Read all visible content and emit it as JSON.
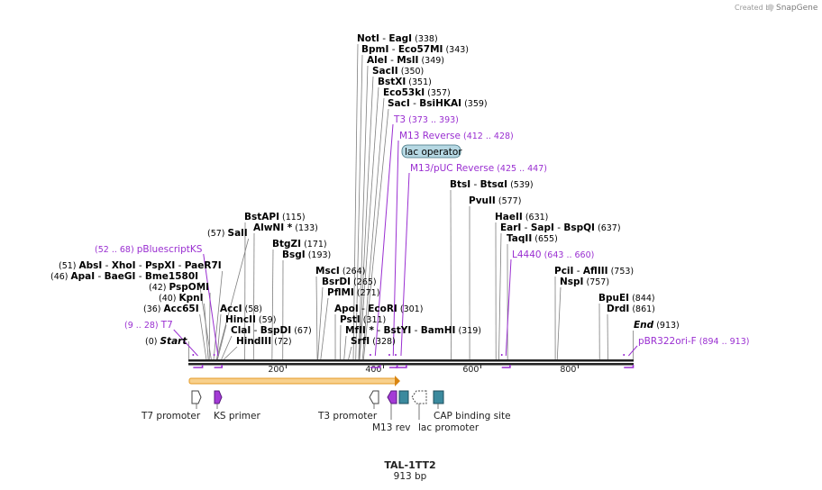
{
  "credit": {
    "prefix": "Created by",
    "brand": "SnapGene"
  },
  "title": "TAL-1TT2",
  "subtitle": "913 bp",
  "axis": {
    "min": 0,
    "max": 913,
    "ticks": [
      200,
      400,
      600,
      800
    ]
  },
  "sites": [
    {
      "label": "NotI",
      "pair": "EagI",
      "pos": "(338)",
      "at": 338
    },
    {
      "label": "BpmI",
      "pair": "Eco57MI",
      "pos": "(343)",
      "at": 343
    },
    {
      "label": "AleI",
      "pair": "MslI",
      "pos": "(349)",
      "at": 349
    },
    {
      "label": "SacII",
      "pos": "(350)",
      "at": 350
    },
    {
      "label": "BstXI",
      "pos": "(351)",
      "at": 351
    },
    {
      "label": "Eco53kI",
      "pos": "(357)",
      "at": 357
    },
    {
      "label": "SacI",
      "pair": "BsiHKAI",
      "pos": "(359)",
      "at": 359
    },
    {
      "label": "BtsI",
      "pair": "BtsαI",
      "pos": "(539)",
      "at": 539
    },
    {
      "label": "PvuII",
      "pos": "(577)",
      "at": 577
    },
    {
      "label": "HaeII",
      "pos": "(631)",
      "at": 631
    },
    {
      "label": "EarI",
      "pair": "SapI",
      "pair2": "BspQI",
      "pos": "(637)",
      "at": 637
    },
    {
      "label": "TaqII",
      "pos": "(655)",
      "at": 655
    },
    {
      "label": "PciI",
      "pair": "AflIII",
      "pos": "(753)",
      "at": 753
    },
    {
      "label": "NspI",
      "pos": "(757)",
      "at": 757
    },
    {
      "label": "BpuEI",
      "pos": "(844)",
      "at": 844
    },
    {
      "label": "DrdI",
      "pos": "(861)",
      "at": 861
    },
    {
      "label": "BstAPI",
      "pos": "(115)",
      "at": 115
    },
    {
      "label": "AlwNI *",
      "pos": "(133)",
      "at": 133
    },
    {
      "label": "BtgZI",
      "pos": "(171)",
      "at": 171
    },
    {
      "label": "BsgI",
      "pos": "(193)",
      "at": 193
    },
    {
      "label": "MscI",
      "pos": "(264)",
      "at": 264
    },
    {
      "label": "BsrDI",
      "pos": "(265)",
      "at": 265
    },
    {
      "label": "PflMI",
      "pos": "(271)",
      "at": 271
    },
    {
      "label": "ApoI",
      "pair": "EcoRI",
      "pos": "(301)",
      "at": 301
    },
    {
      "label": "PstI",
      "pos": "(311)",
      "at": 311
    },
    {
      "label": "MfII *",
      "pair": "BstYI",
      "pair2": "BamHI",
      "pos": "(319)",
      "at": 319
    },
    {
      "label": "SrfI",
      "pos": "(328)",
      "at": 328
    },
    {
      "label": "AccI",
      "pos": "(58)",
      "at": 58
    },
    {
      "label": "HincII",
      "pos": "(59)",
      "at": 59
    },
    {
      "label": "ClaI",
      "pair": "BspDI",
      "pos": "(67)",
      "at": 67
    },
    {
      "label": "HindIII",
      "pos": "(72)",
      "at": 72
    },
    {
      "label": "SalI",
      "pos": "(57)",
      "at": 57
    },
    {
      "label": "AbsI",
      "pair": "XhoI",
      "pair2": "PspXI",
      "pair3": "PaeR7I",
      "pos": "(51)",
      "at": 51
    },
    {
      "label": "ApaI",
      "pair": "BaeGI",
      "pair2": "Bme1580I",
      "pos": "(46)",
      "at": 46
    },
    {
      "label": "PspOMI",
      "pos": "(42)",
      "at": 42
    },
    {
      "label": "KpnI",
      "pos": "(40)",
      "at": 40
    },
    {
      "label": "Acc65I",
      "pos": "(36)",
      "at": 36
    }
  ],
  "ends": [
    {
      "label": "Start",
      "pos": "(0)",
      "at": 0
    },
    {
      "label": "End",
      "pos": "(913)",
      "at": 913
    }
  ],
  "primers": [
    {
      "label": "T3",
      "pos": "(373 .. 393)",
      "from": 373,
      "to": 393
    },
    {
      "label": "M13 Reverse",
      "pos": "(412 .. 428)",
      "from": 412,
      "to": 428
    },
    {
      "label": "M13/pUC Reverse",
      "pos": "(425 .. 447)",
      "from": 425,
      "to": 447
    },
    {
      "label": "pBluescriptKS",
      "pos": "(52 .. 68)",
      "from": 52,
      "to": 68
    },
    {
      "label": "L4440",
      "pos": "(643 .. 660)",
      "from": 643,
      "to": 660
    },
    {
      "label": "T7",
      "pos": "(9 .. 28)",
      "from": 9,
      "to": 28
    },
    {
      "label": "pBR322ori-F",
      "pos": "(894 .. 913)",
      "from": 894,
      "to": 913
    }
  ],
  "lac_operator": "lac operator",
  "features": [
    {
      "label": "T7 promoter",
      "kind": "promoter"
    },
    {
      "label": "KS primer",
      "kind": "primer"
    },
    {
      "label": "T3 promoter",
      "kind": "promoter"
    },
    {
      "label": "M13 rev",
      "kind": "primer"
    },
    {
      "label": "lac promoter",
      "kind": "promoter"
    },
    {
      "label": "CAP binding site",
      "kind": "site"
    }
  ],
  "colors": {
    "primer": "#9a2fd1",
    "site_line": "#7f7f7f",
    "orf": "#f2a53c",
    "protein_bind": "#3b8a9e",
    "lac_fill": "#b6d8e3"
  }
}
